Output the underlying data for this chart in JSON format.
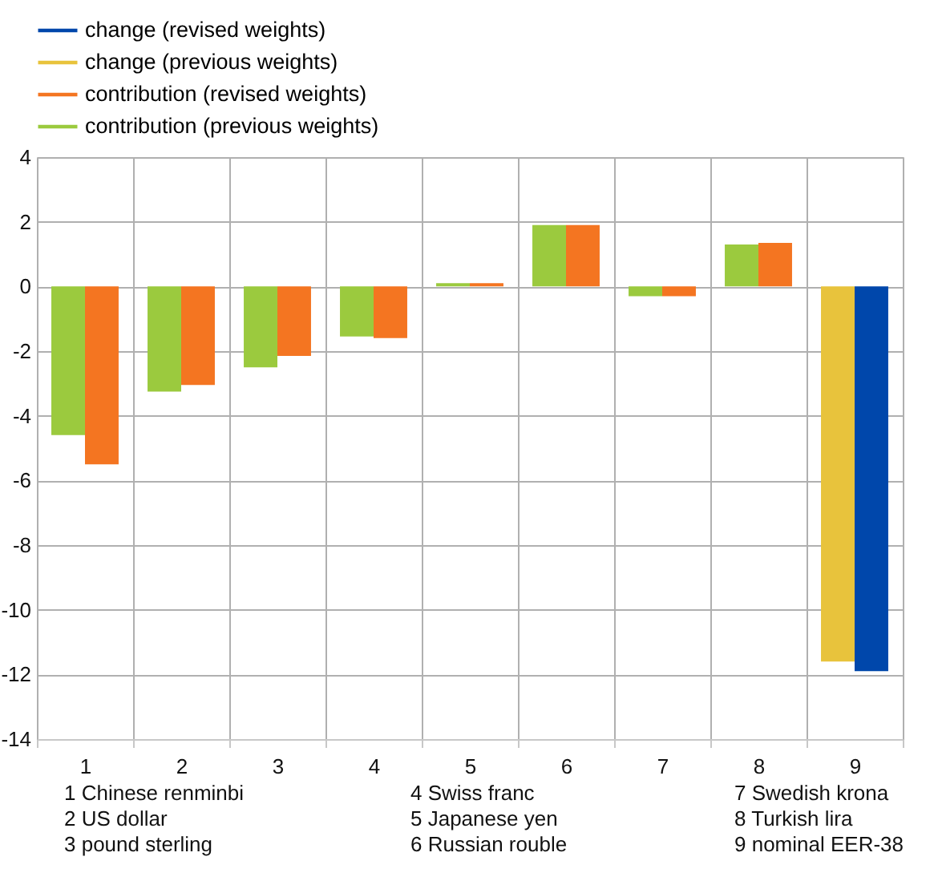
{
  "chart_data": {
    "type": "bar",
    "categories": [
      "1",
      "2",
      "3",
      "4",
      "5",
      "6",
      "7",
      "8",
      "9"
    ],
    "series": [
      {
        "name": "change (revised weights)",
        "color": "#0047ab",
        "values": [
          null,
          null,
          null,
          null,
          null,
          null,
          null,
          null,
          -11.9
        ]
      },
      {
        "name": "change (previous weights)",
        "color": "#e8c33c",
        "values": [
          null,
          null,
          null,
          null,
          null,
          null,
          null,
          null,
          -11.6
        ]
      },
      {
        "name": "contribution (revised weights)",
        "color": "#f47521",
        "values": [
          -5.5,
          -3.05,
          -2.15,
          -1.6,
          0.1,
          1.9,
          -0.3,
          1.35,
          null
        ]
      },
      {
        "name": "contribution (previous weights)",
        "color": "#9bca3e",
        "values": [
          -4.6,
          -3.25,
          -2.5,
          -1.55,
          0.1,
          1.9,
          -0.3,
          1.3,
          null
        ]
      }
    ],
    "ylim": [
      -14,
      4
    ],
    "yticks": [
      -14,
      -12,
      -10,
      -8,
      -6,
      -4,
      -2,
      0,
      2,
      4
    ],
    "grid": true,
    "legend": "top left",
    "annotations": [
      "1 Chinese renminbi",
      "2 US dollar",
      "3 pound sterling",
      "4 Swiss franc",
      "5 Japanese yen",
      "6 Russian rouble",
      "7 Swedish krona",
      "8 Turkish lira",
      "9 nominal EER-38"
    ]
  }
}
